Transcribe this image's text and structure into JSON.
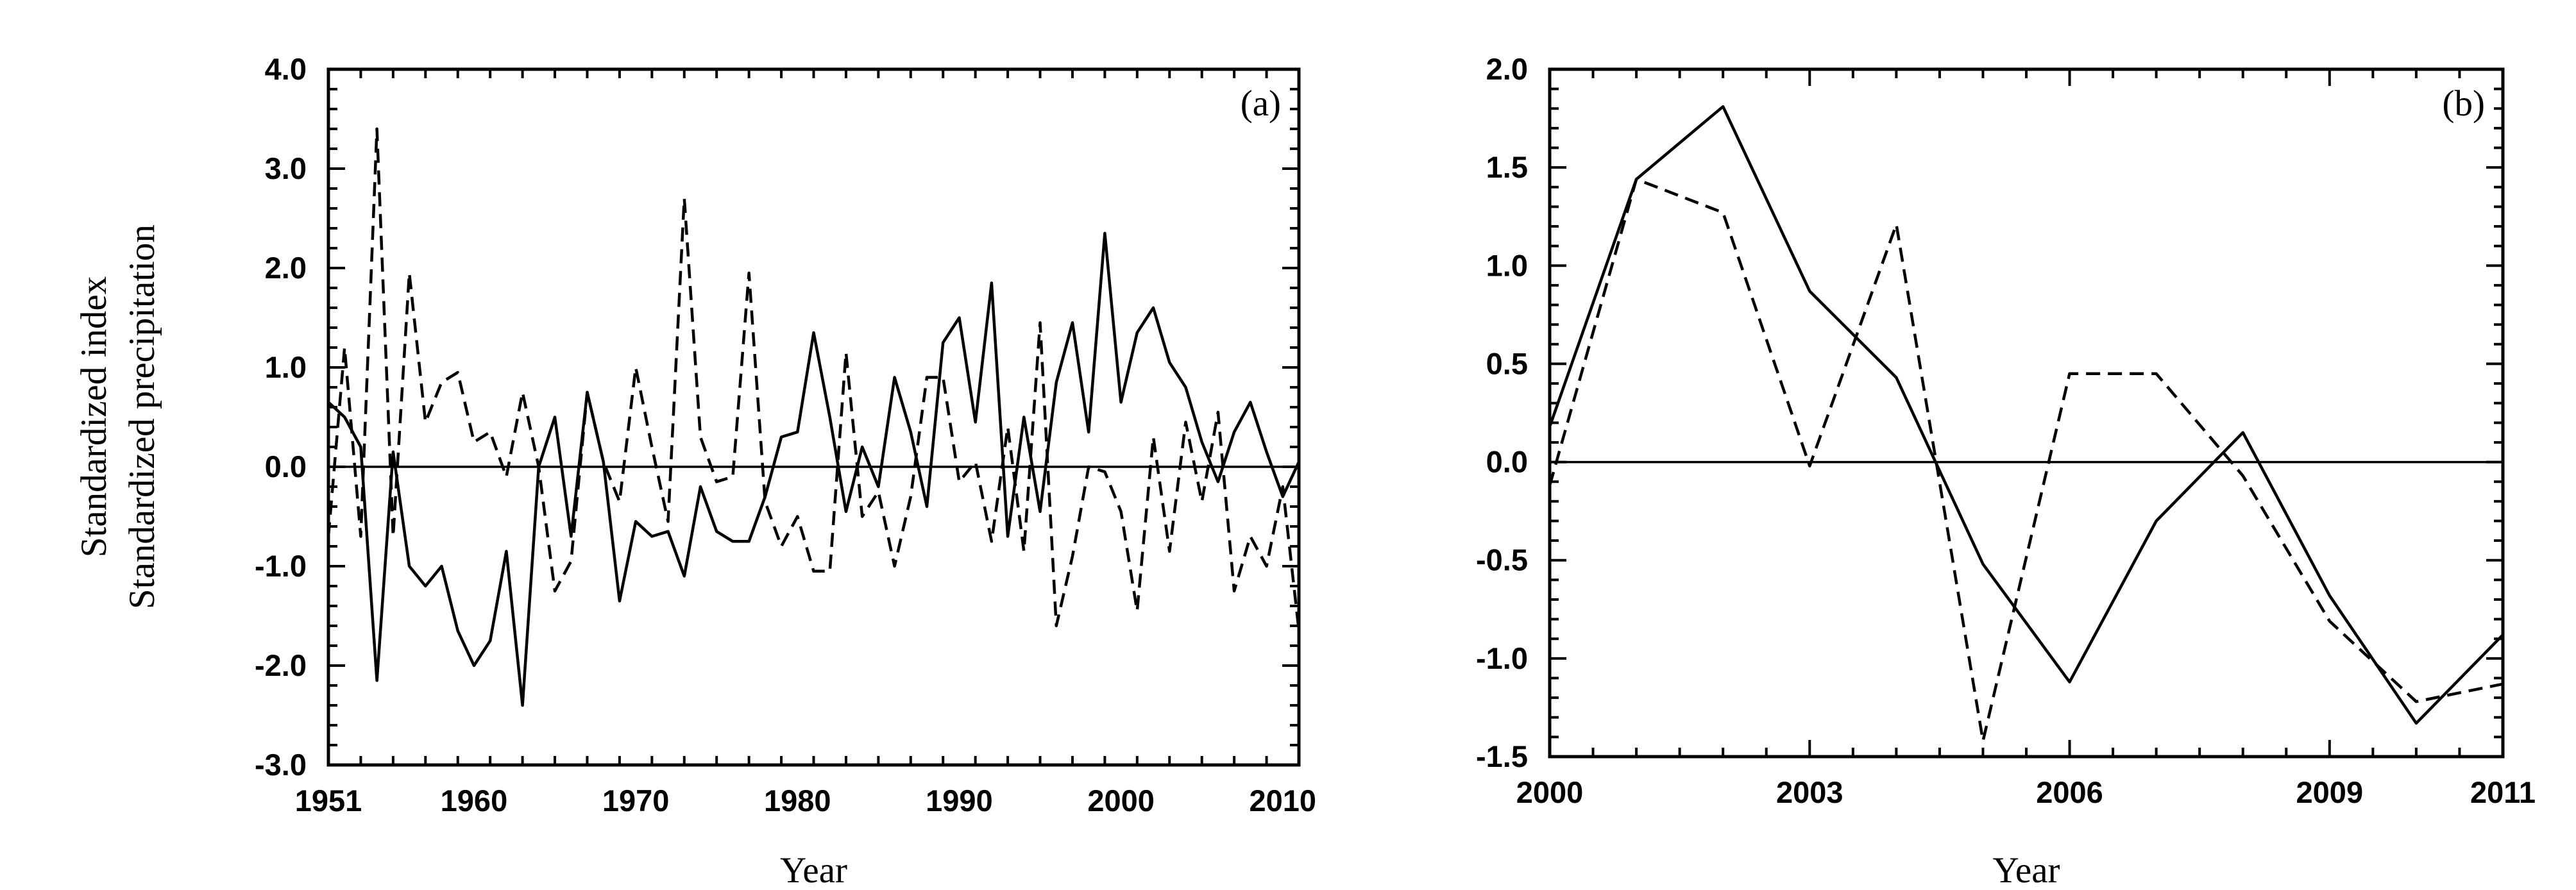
{
  "chart_data": [
    {
      "type": "line",
      "panel_label": "(a)",
      "xlabel": "Year",
      "ylabel_lines": [
        "Standardized index",
        "Standardized precipitation"
      ],
      "xlim": [
        1951,
        2011
      ],
      "ylim": [
        -3.0,
        4.0
      ],
      "xticks": [
        1951,
        1960,
        1970,
        1980,
        1990,
        2000,
        2010
      ],
      "yticks": [
        -3.0,
        -2.0,
        -1.0,
        0.0,
        1.0,
        2.0,
        3.0,
        4.0
      ],
      "ytick_labels": [
        "-3.0",
        "-2.0",
        "-1.0",
        "0.0",
        "1.0",
        "2.0",
        "3.0",
        "4.0"
      ],
      "zero_line": 0.0,
      "x": [
        1951,
        1952,
        1953,
        1954,
        1955,
        1956,
        1957,
        1958,
        1959,
        1960,
        1961,
        1962,
        1963,
        1964,
        1965,
        1966,
        1967,
        1968,
        1969,
        1970,
        1971,
        1972,
        1973,
        1974,
        1975,
        1976,
        1977,
        1978,
        1979,
        1980,
        1981,
        1982,
        1983,
        1984,
        1985,
        1986,
        1987,
        1988,
        1989,
        1990,
        1991,
        1992,
        1993,
        1994,
        1995,
        1996,
        1997,
        1998,
        1999,
        2000,
        2001,
        2002,
        2003,
        2004,
        2005,
        2006,
        2007,
        2008,
        2009,
        2010,
        2011
      ],
      "series": [
        {
          "style": "solid",
          "values": [
            0.65,
            0.5,
            0.2,
            -2.15,
            0.15,
            -1.0,
            -1.2,
            -1.0,
            -1.65,
            -2.0,
            -1.75,
            -0.85,
            -2.4,
            0.0,
            0.5,
            -0.7,
            0.75,
            0.05,
            -1.35,
            -0.55,
            -0.7,
            -0.65,
            -1.1,
            -0.2,
            -0.65,
            -0.75,
            -0.75,
            -0.3,
            0.3,
            0.35,
            1.35,
            0.5,
            -0.45,
            0.2,
            -0.2,
            0.9,
            0.35,
            -0.4,
            1.25,
            1.5,
            0.45,
            1.85,
            -0.7,
            0.5,
            -0.45,
            0.85,
            1.45,
            0.35,
            2.35,
            0.65,
            1.35,
            1.6,
            1.05,
            0.8,
            0.25,
            -0.15,
            0.35,
            0.65,
            0.15,
            -0.3,
            0.05
          ]
        },
        {
          "style": "dashed",
          "values": [
            -0.7,
            1.2,
            -0.7,
            3.4,
            -0.7,
            1.95,
            0.45,
            0.85,
            0.95,
            0.25,
            0.35,
            -0.1,
            0.75,
            0.0,
            -1.25,
            -0.95,
            0.75,
            0.05,
            -0.35,
            1.0,
            0.2,
            -0.55,
            2.7,
            0.3,
            -0.15,
            -0.1,
            1.95,
            -0.35,
            -0.8,
            -0.5,
            -1.05,
            -1.05,
            1.15,
            -0.5,
            -0.25,
            -1.0,
            -0.3,
            0.9,
            0.9,
            -0.15,
            0.05,
            -0.75,
            0.4,
            -0.85,
            1.45,
            -1.6,
            -0.9,
            0.0,
            -0.05,
            -0.45,
            -1.45,
            0.3,
            -0.85,
            0.45,
            -0.35,
            0.55,
            -1.25,
            -0.7,
            -1.0,
            -0.2,
            -1.65
          ]
        }
      ]
    },
    {
      "type": "line",
      "panel_label": "(b)",
      "xlabel": "Year",
      "xlim": [
        2000,
        2011
      ],
      "ylim": [
        -1.5,
        2.0
      ],
      "xticks": [
        2000,
        2003,
        2006,
        2009,
        2011
      ],
      "yticks": [
        -1.5,
        -1.0,
        -0.5,
        0.0,
        0.5,
        1.0,
        1.5,
        2.0
      ],
      "ytick_labels": [
        "-1.5",
        "-1.0",
        "-0.5",
        "0.0",
        "0.5",
        "1.0",
        "1.5",
        "2.0"
      ],
      "zero_line": 0.0,
      "x": [
        2000,
        2001,
        2002,
        2003,
        2004,
        2005,
        2006,
        2007,
        2008,
        2009,
        2010,
        2011
      ],
      "series": [
        {
          "style": "solid",
          "values": [
            0.18,
            1.44,
            1.81,
            0.87,
            0.43,
            -0.52,
            -1.12,
            -0.3,
            0.15,
            -0.68,
            -1.33,
            -0.88
          ]
        },
        {
          "style": "dashed",
          "values": [
            -0.12,
            1.44,
            1.27,
            -0.02,
            1.21,
            -1.42,
            0.45,
            0.45,
            -0.07,
            -0.81,
            -1.22,
            -1.13
          ]
        }
      ]
    }
  ]
}
